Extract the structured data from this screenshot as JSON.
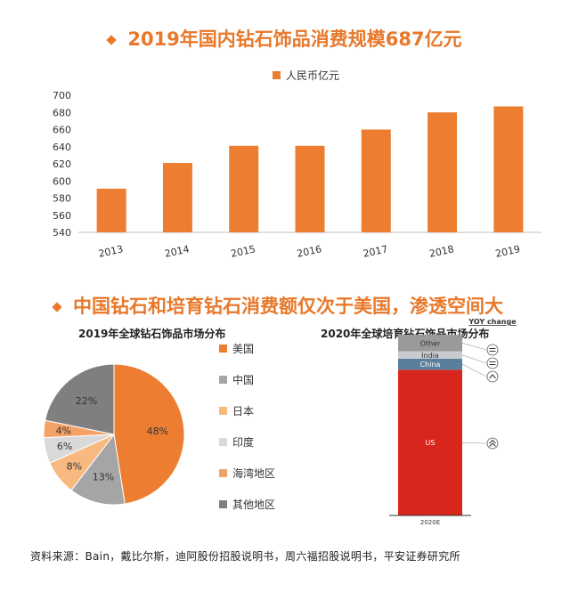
{
  "title_top": "2019年国内钻石饰品消费规模687亿元",
  "title_bottom": "中国钻石和培育钻石消费额仅次于美国，渗透空间大",
  "source": "资料来源：Bain，戴比尔斯，迪阿股份招股说明书，周六福招股说明书，平安证券研究所",
  "chart_data": [
    {
      "type": "bar",
      "categories": [
        "2013",
        "2014",
        "2015",
        "2016",
        "2017",
        "2018",
        "2019"
      ],
      "series": [
        {
          "name": "人民币亿元",
          "values": [
            591,
            621,
            641,
            641,
            660,
            680,
            687
          ]
        }
      ],
      "ylim": [
        540,
        700
      ],
      "yticks": [
        540,
        560,
        580,
        600,
        620,
        640,
        660,
        680,
        700
      ],
      "bar_color": "#ed7d31",
      "grid": false,
      "legend_position": "top-center"
    },
    {
      "type": "pie",
      "title": "2019年全球钻石饰品市场分布",
      "labels": [
        "美国",
        "中国",
        "日本",
        "印度",
        "海湾地区",
        "其他地区"
      ],
      "values": [
        48,
        13,
        8,
        6,
        4,
        22
      ],
      "value_labels": [
        "48%",
        "13%",
        "8%",
        "6%",
        "4%",
        "22%"
      ],
      "colors": [
        "#ed7d31",
        "#a5a5a5",
        "#f8b980",
        "#d9d9d9",
        "#f4a266",
        "#7f7f7f"
      ],
      "legend_position": "right"
    },
    {
      "type": "bar",
      "title": "2020年全球培育钻石饰品市场分布",
      "categories": [
        "2020E"
      ],
      "segments": [
        {
          "name": "US",
          "value": 79,
          "color": "#d9261c",
          "yoy": "double-up"
        },
        {
          "name": "China",
          "value": 6,
          "color": "#5a7f9e",
          "yoy": "up"
        },
        {
          "name": "India",
          "value": 4,
          "color": "#c8ccd0",
          "yoy": "equal"
        },
        {
          "name": "Other",
          "value": 9,
          "color": "#9a9a9a",
          "yoy": "equal"
        }
      ],
      "yoy_header": "YOY change"
    }
  ]
}
